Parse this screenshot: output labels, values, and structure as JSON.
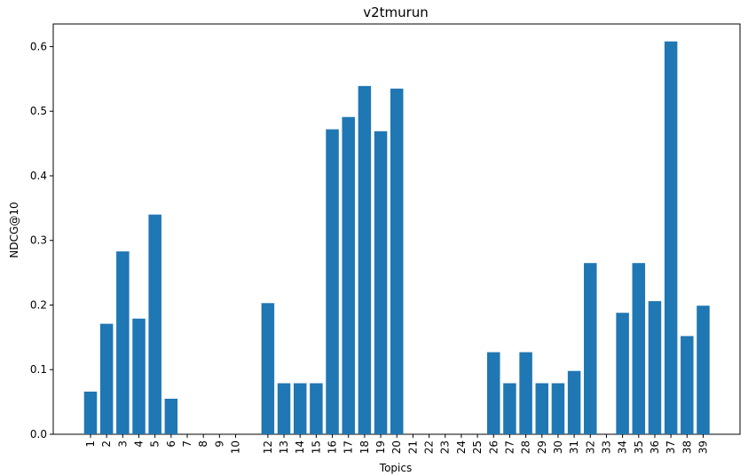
{
  "chart_data": {
    "type": "bar",
    "title": "v2tmurun",
    "xlabel": "Topics",
    "ylabel": "NDCG@10",
    "ylim": [
      0.0,
      0.635
    ],
    "yticks": [
      "0.0",
      "0.1",
      "0.2",
      "0.3",
      "0.4",
      "0.5",
      "0.6"
    ],
    "grid": false,
    "color": "#1f77b4",
    "categories": [
      "1",
      "2",
      "3",
      "4",
      "5",
      "6",
      "7",
      "8",
      "9",
      "10",
      "12",
      "13",
      "14",
      "15",
      "16",
      "17",
      "18",
      "19",
      "20",
      "21",
      "22",
      "23",
      "24",
      "25",
      "26",
      "27",
      "28",
      "29",
      "30",
      "31",
      "32",
      "33",
      "34",
      "35",
      "36",
      "37",
      "38",
      "39"
    ],
    "values": [
      0.066,
      0.171,
      0.283,
      0.179,
      0.34,
      0.055,
      0.0,
      0.0,
      0.0,
      0.0,
      0.203,
      0.079,
      0.079,
      0.079,
      0.472,
      0.491,
      0.539,
      0.469,
      0.535,
      0.0,
      0.0,
      0.0,
      0.0,
      0.0,
      0.127,
      0.079,
      0.127,
      0.079,
      0.079,
      0.098,
      0.265,
      0.0,
      0.188,
      0.265,
      0.206,
      0.608,
      0.152,
      0.199
    ]
  }
}
